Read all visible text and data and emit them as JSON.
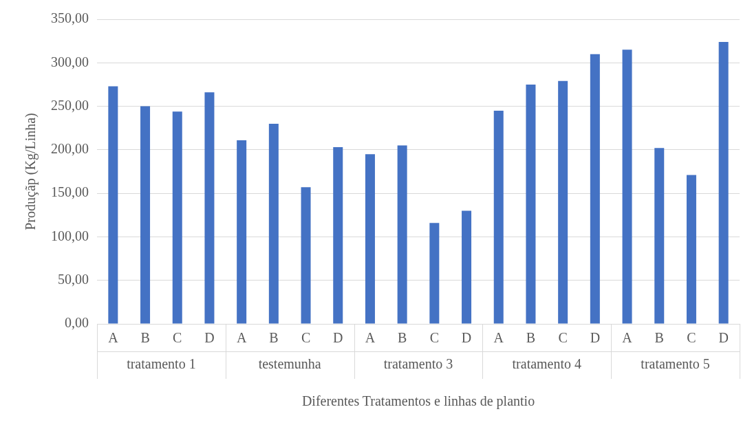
{
  "chart_data": {
    "type": "bar",
    "xlabel": "Diferentes Tratamentos e linhas de plantio",
    "ylabel": "Produçãp (Kg/Linha)",
    "categories": [
      "A",
      "B",
      "C",
      "D",
      "A",
      "B",
      "C",
      "D",
      "A",
      "B",
      "C",
      "D",
      "A",
      "B",
      "C",
      "D",
      "A",
      "B",
      "C",
      "D"
    ],
    "values": [
      273,
      250,
      244,
      266,
      211,
      230,
      157,
      203,
      195,
      205,
      116,
      130,
      245,
      275,
      279,
      310,
      315,
      202,
      171,
      324
    ],
    "color": "#4472c4",
    "ylim": [
      0,
      350
    ],
    "yticks": [
      {
        "value": 0,
        "label": "0,00"
      },
      {
        "value": 50,
        "label": "50,00"
      },
      {
        "value": 100,
        "label": "100,00"
      },
      {
        "value": 150,
        "label": "150,00"
      },
      {
        "value": 200,
        "label": "200,00"
      },
      {
        "value": 250,
        "label": "250,00"
      },
      {
        "value": 300,
        "label": "300,00"
      },
      {
        "value": 350,
        "label": "350,00"
      }
    ],
    "grid": "y",
    "legend": false,
    "annotations": [
      "tratamento 1",
      "testemunha",
      "tratamento 3",
      "tratamento 4",
      "tratamento 5"
    ]
  }
}
